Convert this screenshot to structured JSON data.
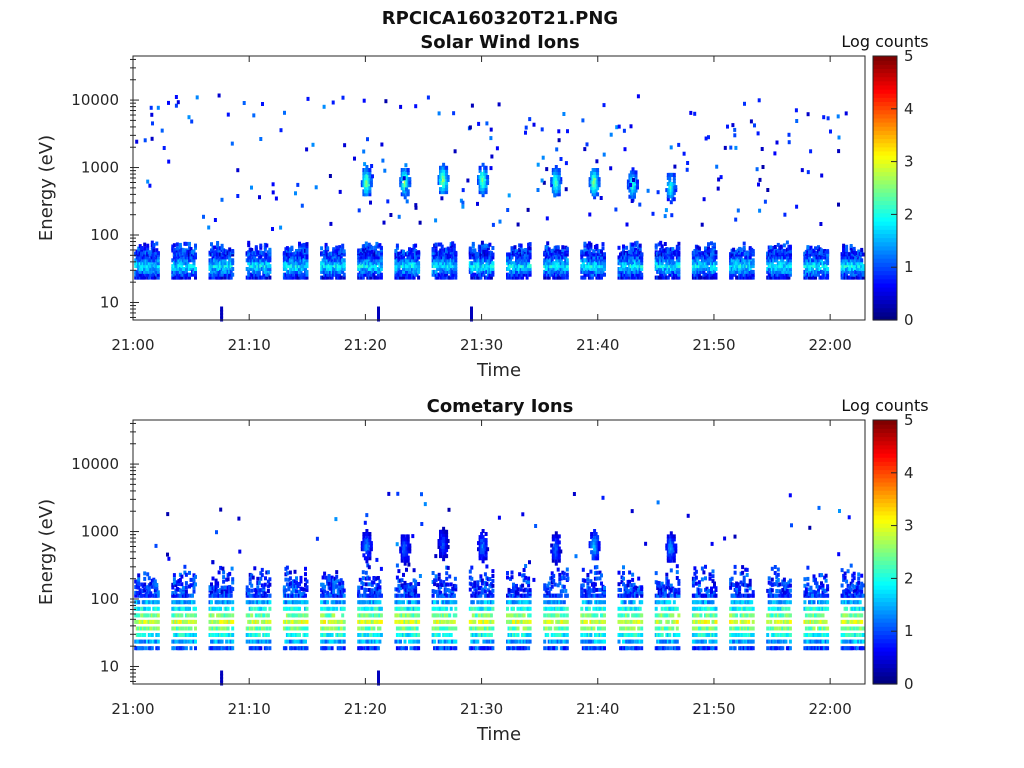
{
  "figure_title": "RPCICA160320T21.PNG",
  "panels": [
    {
      "title": "Solar Wind Ions",
      "xlabel": "Time",
      "ylabel": "Energy (eV)",
      "colorbar_label": "Log counts"
    },
    {
      "title": "Cometary Ions",
      "xlabel": "Time",
      "ylabel": "Energy (eV)",
      "colorbar_label": "Log counts"
    }
  ],
  "chart_data": [
    {
      "type": "heatmap",
      "title": "Solar Wind Ions",
      "xlabel": "Time",
      "ylabel": "Energy (eV)",
      "x_ticks": [
        "21:00",
        "21:10",
        "21:20",
        "21:30",
        "21:40",
        "21:50",
        "22:00"
      ],
      "x_range_minutes": [
        0,
        63
      ],
      "y_scale": "log",
      "y_ticks": [
        10,
        100,
        1000,
        10000
      ],
      "y_range": [
        5.5,
        45000
      ],
      "colorbar": {
        "label": "Log counts",
        "range": [
          0,
          5
        ],
        "ticks": [
          0,
          1,
          2,
          3,
          4,
          5
        ],
        "colormap": "jet"
      },
      "sweep_period_minutes": 3.2,
      "bursts": [
        {
          "t_min": 20.0,
          "energy_eV": 650,
          "log_counts": 2.7
        },
        {
          "t_min": 23.3,
          "energy_eV": 650,
          "log_counts": 2.6
        },
        {
          "t_min": 26.6,
          "energy_eV": 700,
          "log_counts": 2.8
        },
        {
          "t_min": 30.0,
          "energy_eV": 700,
          "log_counts": 2.6
        },
        {
          "t_min": 36.3,
          "energy_eV": 650,
          "log_counts": 2.4
        },
        {
          "t_min": 39.6,
          "energy_eV": 650,
          "log_counts": 2.7
        },
        {
          "t_min": 42.9,
          "energy_eV": 600,
          "log_counts": 2.3
        },
        {
          "t_min": 46.2,
          "energy_eV": 550,
          "log_counts": 2.2
        }
      ],
      "low_energy_band_eV": [
        25,
        55
      ],
      "low_energy_band_log_counts": 1.6
    },
    {
      "type": "heatmap",
      "title": "Cometary Ions",
      "xlabel": "Time",
      "ylabel": "Energy (eV)",
      "x_ticks": [
        "21:00",
        "21:10",
        "21:20",
        "21:30",
        "21:40",
        "21:50",
        "22:00"
      ],
      "x_range_minutes": [
        0,
        63
      ],
      "y_scale": "log",
      "y_ticks": [
        10,
        100,
        1000,
        10000
      ],
      "y_range": [
        5.5,
        45000
      ],
      "colorbar": {
        "label": "Log counts",
        "range": [
          0,
          5
        ],
        "ticks": [
          0,
          1,
          2,
          3,
          4,
          5
        ],
        "colormap": "jet"
      },
      "sweep_period_minutes": 3.2,
      "bursts": [
        {
          "t_min": 20.0,
          "energy_eV": 650,
          "log_counts": 1.4
        },
        {
          "t_min": 23.3,
          "energy_eV": 600,
          "log_counts": 1.2
        },
        {
          "t_min": 26.6,
          "energy_eV": 700,
          "log_counts": 1.1
        },
        {
          "t_min": 30.0,
          "energy_eV": 650,
          "log_counts": 1.3
        },
        {
          "t_min": 36.3,
          "energy_eV": 600,
          "log_counts": 1.2
        },
        {
          "t_min": 39.6,
          "energy_eV": 650,
          "log_counts": 1.7
        },
        {
          "t_min": 46.2,
          "energy_eV": 600,
          "log_counts": 1.5
        }
      ],
      "low_energy_band_eV": [
        20,
        120
      ],
      "low_energy_band_log_counts": 2.6
    }
  ]
}
